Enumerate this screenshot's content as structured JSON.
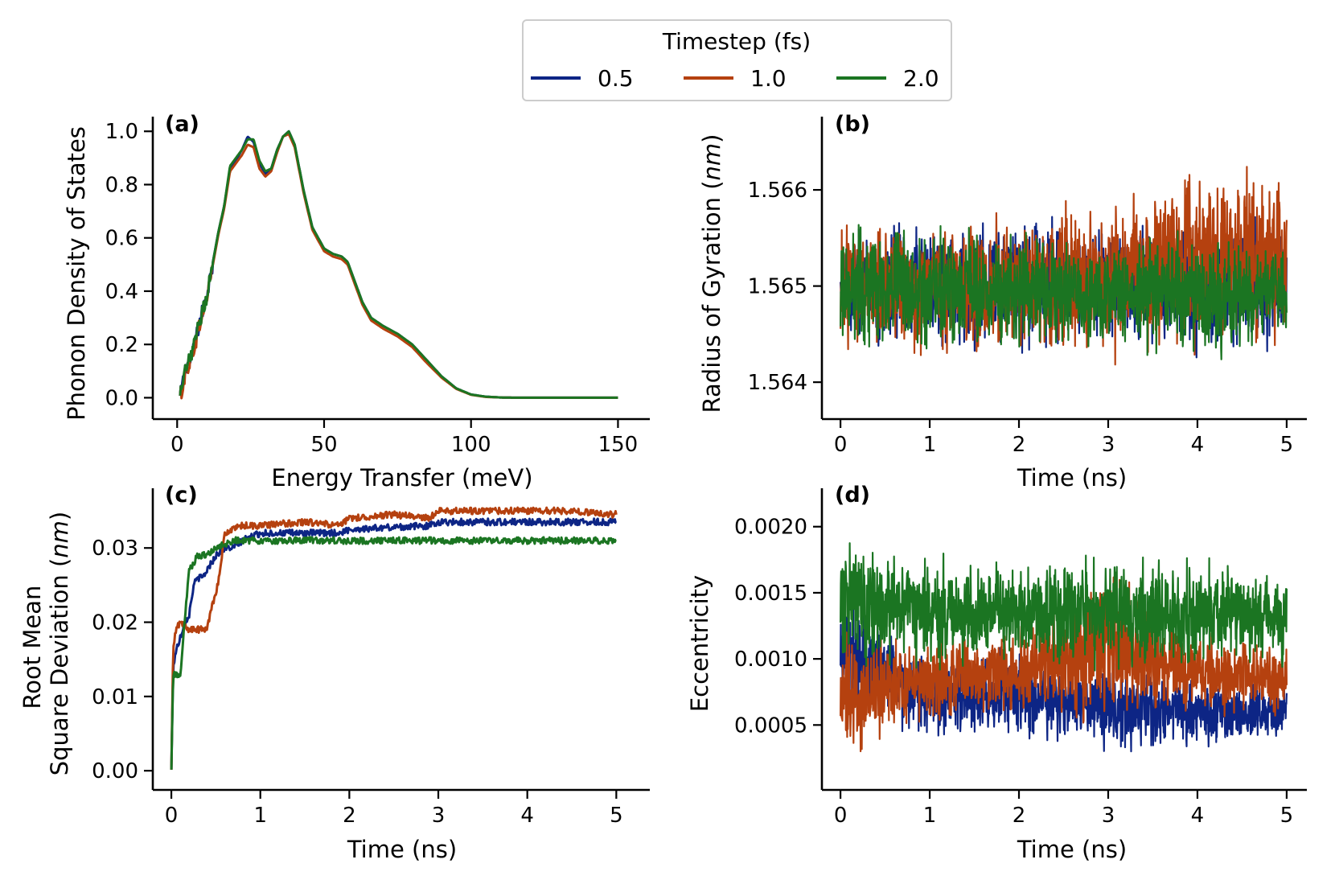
{
  "colors": {
    "0.5": "#0d2585",
    "1.0": "#b5410f",
    "2.0": "#1b7522"
  },
  "legend": {
    "title": "Timestep (fs)",
    "entries": [
      {
        "label": "0.5",
        "color": "#0d2585"
      },
      {
        "label": "1.0",
        "color": "#b5410f"
      },
      {
        "label": "2.0",
        "color": "#1b7522"
      }
    ],
    "placement": "top-center"
  },
  "chart_data": [
    {
      "panel": "(a)",
      "type": "line",
      "xlabel": "Energy Transfer (meV)",
      "ylabel": "Phonon Density of States",
      "xlim": [
        -5,
        157
      ],
      "ylim": [
        -0.05,
        1.04
      ],
      "xticks": [
        "0",
        "50",
        "100",
        "150"
      ],
      "yticks": [
        "0.0",
        "0.2",
        "0.4",
        "0.6",
        "0.8",
        "1.0"
      ],
      "series": [
        {
          "name": "0.5",
          "x": [
            1,
            3,
            5,
            8,
            10,
            12,
            14,
            16,
            18,
            20,
            22,
            24,
            26,
            28,
            30,
            32,
            34,
            36,
            38,
            40,
            43,
            46,
            50,
            53,
            56,
            58,
            60,
            63,
            66,
            70,
            75,
            80,
            85,
            90,
            95,
            100,
            105,
            110,
            115,
            120,
            130,
            140,
            150
          ],
          "y": [
            0.0,
            0.12,
            0.15,
            0.3,
            0.38,
            0.5,
            0.62,
            0.72,
            0.86,
            0.89,
            0.93,
            0.98,
            0.96,
            0.88,
            0.84,
            0.86,
            0.93,
            0.98,
            1.0,
            0.95,
            0.78,
            0.64,
            0.56,
            0.54,
            0.53,
            0.51,
            0.45,
            0.36,
            0.3,
            0.27,
            0.24,
            0.2,
            0.14,
            0.08,
            0.035,
            0.012,
            0.004,
            0.001,
            0.0,
            0.0,
            0.0,
            0.0,
            0.0
          ]
        },
        {
          "name": "1.0",
          "x": [
            1,
            3,
            5,
            8,
            10,
            12,
            14,
            16,
            18,
            20,
            22,
            24,
            26,
            28,
            30,
            32,
            34,
            36,
            38,
            40,
            43,
            46,
            50,
            53,
            56,
            58,
            60,
            63,
            66,
            70,
            75,
            80,
            85,
            90,
            95,
            100,
            105,
            110,
            115,
            120,
            130,
            140,
            150
          ],
          "y": [
            0.0,
            0.1,
            0.15,
            0.29,
            0.37,
            0.49,
            0.61,
            0.71,
            0.85,
            0.88,
            0.91,
            0.95,
            0.94,
            0.86,
            0.83,
            0.85,
            0.92,
            0.98,
            0.99,
            0.94,
            0.77,
            0.63,
            0.55,
            0.53,
            0.52,
            0.5,
            0.44,
            0.35,
            0.29,
            0.26,
            0.23,
            0.19,
            0.13,
            0.075,
            0.033,
            0.011,
            0.003,
            0.001,
            0.0,
            0.0,
            0.0,
            0.0,
            0.0
          ]
        },
        {
          "name": "2.0",
          "x": [
            1,
            3,
            5,
            8,
            10,
            12,
            14,
            16,
            18,
            20,
            22,
            24,
            26,
            28,
            30,
            32,
            34,
            36,
            38,
            40,
            43,
            46,
            50,
            53,
            56,
            58,
            60,
            63,
            66,
            70,
            75,
            80,
            85,
            90,
            95,
            100,
            105,
            110,
            115,
            120,
            130,
            140,
            150
          ],
          "y": [
            0.0,
            0.11,
            0.16,
            0.3,
            0.38,
            0.5,
            0.62,
            0.72,
            0.87,
            0.9,
            0.93,
            0.97,
            0.97,
            0.89,
            0.85,
            0.86,
            0.93,
            0.98,
            1.0,
            0.95,
            0.78,
            0.64,
            0.56,
            0.54,
            0.53,
            0.51,
            0.45,
            0.36,
            0.3,
            0.27,
            0.24,
            0.2,
            0.14,
            0.08,
            0.035,
            0.012,
            0.004,
            0.001,
            0.0,
            0.0,
            0.0,
            0.0,
            0.0
          ]
        }
      ]
    },
    {
      "panel": "(b)",
      "type": "line",
      "xlabel": "Time (ns)",
      "ylabel": "Radius of Gyration (nm)",
      "xlim": [
        -0.1,
        5.1
      ],
      "ylim": [
        1.5637,
        1.56672
      ],
      "xticks": [
        "0",
        "1",
        "2",
        "3",
        "4",
        "5"
      ],
      "yticks": [
        "1.564",
        "1.565",
        "1.566"
      ],
      "series": [
        {
          "name": "0.5",
          "x": [
            0,
            1,
            2,
            3,
            4,
            5
          ],
          "y_mean": [
            1.565,
            1.565,
            1.565,
            1.565,
            1.565,
            1.565
          ],
          "y_halfrange": [
            0.0007,
            0.0007,
            0.0008,
            0.0007,
            0.0007,
            0.0007
          ]
        },
        {
          "name": "1.0",
          "x": [
            0,
            1,
            2,
            3,
            4,
            5
          ],
          "y_mean": [
            1.565,
            1.565,
            1.565,
            1.5651,
            1.5653,
            1.5653
          ],
          "y_halfrange": [
            0.0007,
            0.0008,
            0.0008,
            0.0009,
            0.001,
            0.0009
          ]
        },
        {
          "name": "2.0",
          "x": [
            0,
            1,
            2,
            3,
            4,
            5
          ],
          "y_mean": [
            1.565,
            1.565,
            1.5649,
            1.5649,
            1.5649,
            1.5649
          ],
          "y_halfrange": [
            0.0007,
            0.0007,
            0.0007,
            0.0006,
            0.0007,
            0.0006
          ]
        }
      ]
    },
    {
      "panel": "(c)",
      "type": "line",
      "xlabel": "Time (ns)",
      "ylabel": "Root Mean Square Deviation (nm)",
      "xlim": [
        -0.1,
        5.25
      ],
      "ylim": [
        -0.0015,
        0.0375
      ],
      "xticks": [
        "0",
        "1",
        "2",
        "3",
        "4",
        "5"
      ],
      "yticks": [
        "0.00",
        "0.01",
        "0.02",
        "0.03"
      ],
      "series": [
        {
          "name": "0.5",
          "x": [
            0,
            0.02,
            0.05,
            0.1,
            0.15,
            0.2,
            0.25,
            0.3,
            0.35,
            0.4,
            0.45,
            0.5,
            0.6,
            0.7,
            0.8,
            1.0,
            1.5,
            1.9,
            2.0,
            2.5,
            2.9,
            3.0,
            3.5,
            4.0,
            4.5,
            5.0
          ],
          "y": [
            0,
            0.014,
            0.016,
            0.018,
            0.02,
            0.021,
            0.025,
            0.026,
            0.026,
            0.027,
            0.028,
            0.029,
            0.03,
            0.03,
            0.031,
            0.032,
            0.032,
            0.032,
            0.0325,
            0.0328,
            0.033,
            0.0335,
            0.0335,
            0.0335,
            0.0335,
            0.0335
          ]
        },
        {
          "name": "1.0",
          "x": [
            0,
            0.02,
            0.05,
            0.1,
            0.2,
            0.3,
            0.4,
            0.45,
            0.5,
            0.55,
            0.6,
            0.8,
            1.0,
            1.5,
            1.9,
            2.0,
            2.5,
            2.9,
            3.0,
            3.5,
            4.0,
            4.5,
            5.0
          ],
          "y": [
            0,
            0.016,
            0.019,
            0.02,
            0.019,
            0.019,
            0.019,
            0.022,
            0.024,
            0.027,
            0.032,
            0.033,
            0.033,
            0.0335,
            0.033,
            0.034,
            0.0345,
            0.034,
            0.035,
            0.035,
            0.035,
            0.035,
            0.0345
          ]
        },
        {
          "name": "2.0",
          "x": [
            0,
            0.02,
            0.05,
            0.1,
            0.15,
            0.2,
            0.25,
            0.3,
            0.4,
            0.5,
            0.6,
            0.7,
            0.8,
            1.0,
            1.5,
            2.0,
            2.5,
            3.0,
            3.5,
            4.0,
            4.5,
            5.0
          ],
          "y": [
            0,
            0.013,
            0.013,
            0.013,
            0.02,
            0.027,
            0.028,
            0.029,
            0.029,
            0.03,
            0.0305,
            0.031,
            0.031,
            0.031,
            0.031,
            0.031,
            0.031,
            0.031,
            0.031,
            0.031,
            0.031,
            0.031
          ]
        }
      ]
    },
    {
      "panel": "(d)",
      "type": "line",
      "xlabel": "Time (ns)",
      "ylabel": "Eccentricity",
      "xlim": [
        -0.1,
        5.1
      ],
      "ylim": [
        7e-05,
        0.00226
      ],
      "xticks": [
        "0",
        "1",
        "2",
        "3",
        "4",
        "5"
      ],
      "yticks": [
        "0.0005",
        "0.0010",
        "0.0015",
        "0.0020"
      ],
      "series": [
        {
          "name": "0.5",
          "x": [
            0,
            1,
            2,
            3,
            4,
            5
          ],
          "y_mean": [
            0.0011,
            0.0007,
            0.00072,
            0.00065,
            0.0006,
            0.0006
          ],
          "y_halfrange": [
            0.0005,
            0.00035,
            0.00035,
            0.0004,
            0.00028,
            0.00025
          ]
        },
        {
          "name": "1.0",
          "x": [
            0,
            1,
            2,
            3,
            4,
            5
          ],
          "y_mean": [
            0.0007,
            0.00085,
            0.0009,
            0.0011,
            0.0009,
            0.00085
          ],
          "y_halfrange": [
            0.0005,
            0.00035,
            0.00035,
            0.0007,
            0.00035,
            0.0003
          ]
        },
        {
          "name": "2.0",
          "x": [
            0,
            1,
            2,
            3,
            4,
            5
          ],
          "y_mean": [
            0.0014,
            0.00135,
            0.00135,
            0.00135,
            0.00135,
            0.0013
          ],
          "y_halfrange": [
            0.00055,
            0.00045,
            0.00045,
            0.00045,
            0.00045,
            0.0004
          ]
        }
      ]
    }
  ]
}
